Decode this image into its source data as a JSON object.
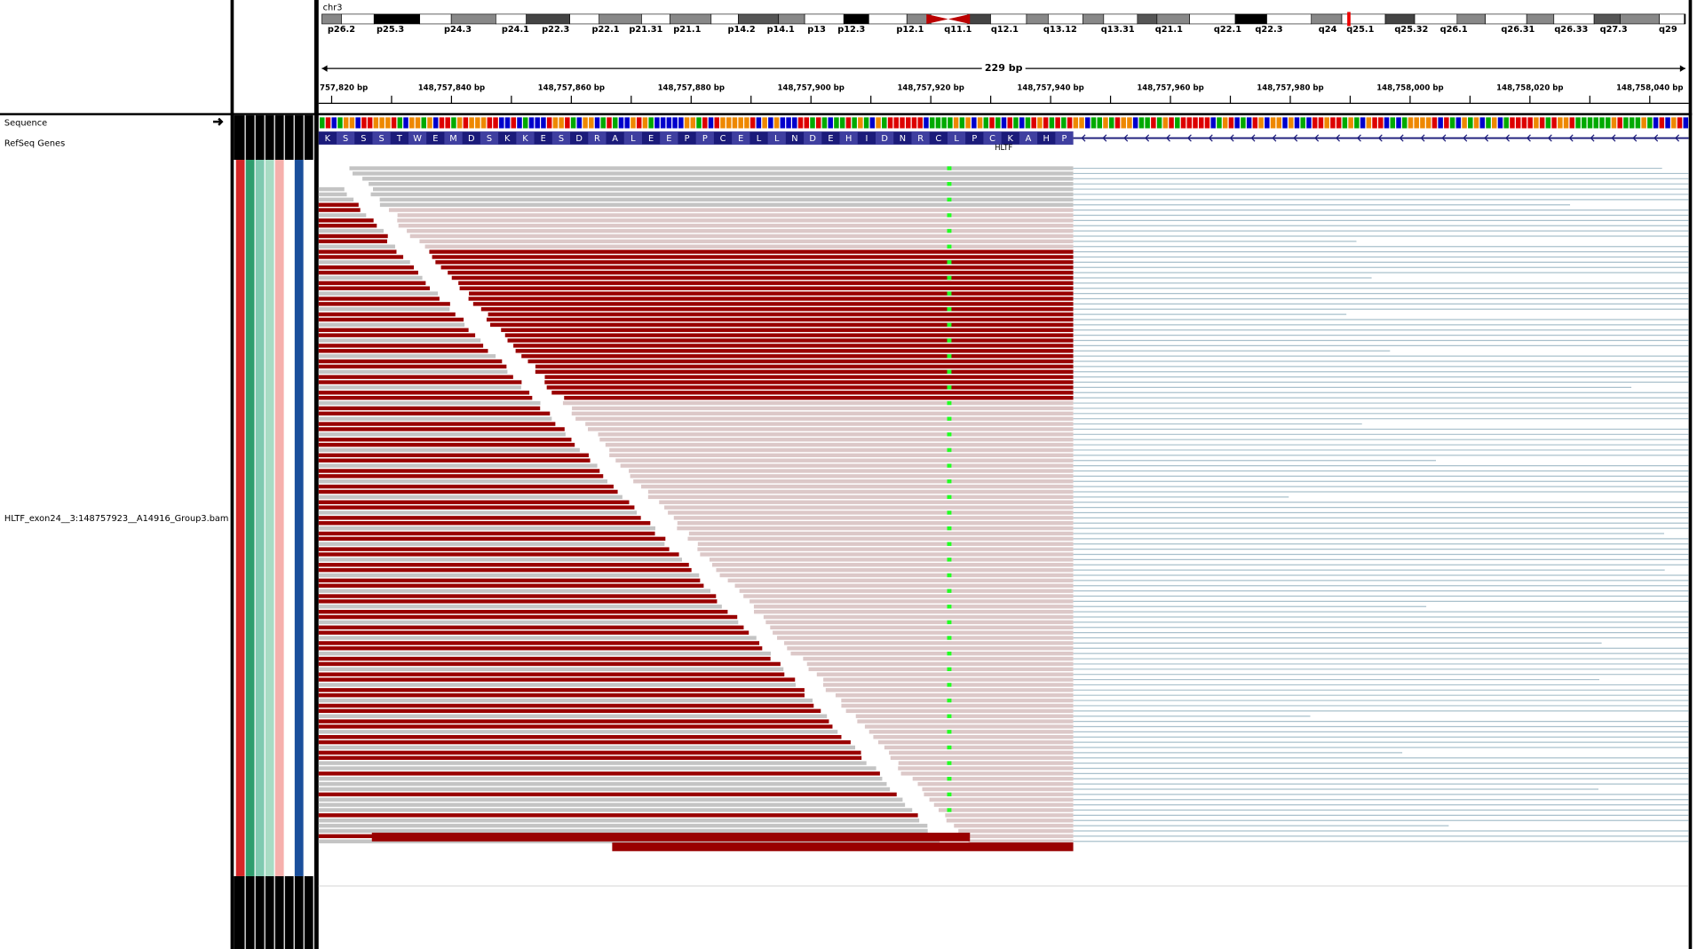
{
  "header": {
    "chromosome": "chr3",
    "bands": [
      "p26.2",
      "p25.3",
      "p24.3",
      "p24.1",
      "p22.3",
      "p22.1",
      "p21.31",
      "p21.1",
      "p14.2",
      "p14.1",
      "p13",
      "p12.3",
      "p12.1",
      "q11.1",
      "q12.1",
      "q13.12",
      "q13.31",
      "q21.1",
      "q22.1",
      "q22.3",
      "q24",
      "q25.1",
      "q25.32",
      "q26.1",
      "q26.31",
      "q26.33",
      "q27.3",
      "q29"
    ],
    "span": "229 bp",
    "positions": [
      "757,820 bp",
      "148,757,840 bp",
      "148,757,860 bp",
      "148,757,880 bp",
      "148,757,900 bp",
      "148,757,920 bp",
      "148,757,940 bp",
      "148,757,960 bp",
      "148,757,980 bp",
      "148,758,000 bp",
      "148,758,020 bp",
      "148,758,040 bp"
    ]
  },
  "tracks": {
    "sequence": "Sequence",
    "refseq": "RefSeq Genes",
    "gene": "HLTF",
    "amino_acids": [
      "K",
      "S",
      "S",
      "S",
      "T",
      "W",
      "E",
      "M",
      "D",
      "S",
      "K",
      "K",
      "E",
      "S",
      "D",
      "R",
      "A",
      "L",
      "E",
      "E",
      "P",
      "P",
      "C",
      "E",
      "L",
      "L",
      "N",
      "D",
      "E",
      "H",
      "I",
      "D",
      "N",
      "R",
      "C",
      "L",
      "P",
      "C",
      "K",
      "A",
      "H",
      "P"
    ],
    "bam": "HLTF_exon24__3:148757923__A14916_Group3.bam"
  }
}
